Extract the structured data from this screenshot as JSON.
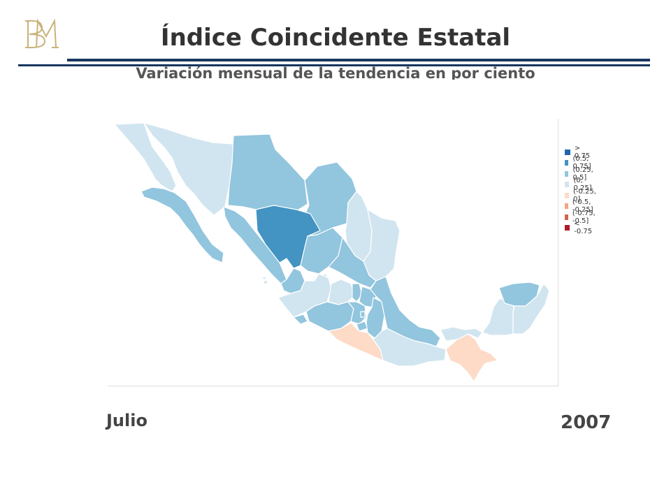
{
  "header": {
    "title": "Índice Coincidente Estatal",
    "subtitle": "Variación mensual de la tendencia en por ciento",
    "logo_icon": "bm-monogram-icon"
  },
  "map": {
    "region": "Mexico",
    "legend": [
      {
        "label": "> 0.75",
        "color": "#2166ac"
      },
      {
        "label": "(0.5, 0.75]",
        "color": "#4393c3"
      },
      {
        "label": "(0.25, 0.5]",
        "color": "#92c5de"
      },
      {
        "label": "(0, 0.25]",
        "color": "#d1e5f0"
      },
      {
        "label": "(-0.25, 0]",
        "color": "#fddbc7"
      },
      {
        "label": "(-0.5, -0.25]",
        "color": "#f4a582"
      },
      {
        "label": "(-0.75, -0.5]",
        "color": "#d6604d"
      },
      {
        "label": "< -0.75",
        "color": "#b2182b"
      }
    ],
    "state_classes": {
      "baja-california": "(0, 0.25]",
      "baja-california-sur": "(0.25, 0.5]",
      "sonora": "(0, 0.25]",
      "chihuahua": "(0.25, 0.5]",
      "coahuila": "(0.25, 0.5]",
      "nuevo-leon": "(0, 0.25]",
      "tamaulipas": "(0, 0.25]",
      "sinaloa": "(0.25, 0.5]",
      "durango": "(0.5, 0.75]",
      "zacatecas": "(0.25, 0.5]",
      "san-luis-potosi": "(0.25, 0.5]",
      "nayarit": "(0.25, 0.5]",
      "aguascalientes": "(0, 0.25]",
      "jalisco": "(0, 0.25]",
      "guanajuato": "(0, 0.25]",
      "queretaro": "(0.25, 0.5]",
      "hidalgo": "(0.25, 0.5]",
      "colima": "(0.25, 0.5]",
      "michoacan": "(0.25, 0.5]",
      "mexico": "(0.25, 0.5]",
      "ciudad-de-mexico": "(0.25, 0.5]",
      "morelos": "(0.25, 0.5]",
      "tlaxcala": "(0.25, 0.5]",
      "puebla": "(0.25, 0.5]",
      "veracruz": "(0.25, 0.5]",
      "guerrero": "(-0.25, 0]",
      "oaxaca": "(0, 0.25]",
      "chiapas": "(-0.25, 0]",
      "tabasco": "(0, 0.25]",
      "campeche": "(0, 0.25]",
      "yucatan": "(0.25, 0.5]",
      "quintana-roo": "(0, 0.25]"
    }
  },
  "footer": {
    "month": "Julio",
    "year": "2007"
  }
}
